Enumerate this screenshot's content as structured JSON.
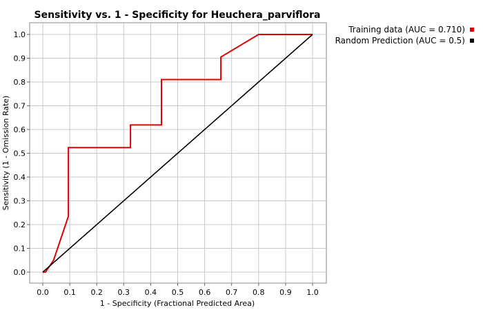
{
  "chart_data": {
    "type": "line",
    "title": "Sensitivity vs. 1 - Specificity for Heuchera_parviflora",
    "xlabel": "1 - Specificity  (Fractional Predicted Area)",
    "ylabel": "Sensitivity  (1 - Omission Rate)",
    "xlim": [
      0,
      1
    ],
    "ylim": [
      0,
      1
    ],
    "xticks": [
      "0.0",
      "0.1",
      "0.2",
      "0.3",
      "0.4",
      "0.5",
      "0.6",
      "0.7",
      "0.8",
      "0.9",
      "1.0"
    ],
    "yticks": [
      "0.0",
      "0.1",
      "0.2",
      "0.3",
      "0.4",
      "0.5",
      "0.6",
      "0.7",
      "0.8",
      "0.9",
      "1.0"
    ],
    "grid": true,
    "legend_position": "top-right outside",
    "series": [
      {
        "name": "Training data (AUC = 0.710)",
        "color": "#e00000",
        "x": [
          0.0,
          0.01,
          0.04,
          0.095,
          0.095,
          0.325,
          0.325,
          0.44,
          0.44,
          0.66,
          0.66,
          0.8,
          1.0
        ],
        "y": [
          0.0,
          0.0,
          0.05,
          0.235,
          0.524,
          0.524,
          0.619,
          0.619,
          0.81,
          0.81,
          0.905,
          1.0,
          1.0
        ]
      },
      {
        "name": "Random Prediction (AUC = 0.5)",
        "color": "#000000",
        "x": [
          0.0,
          1.0
        ],
        "y": [
          0.0,
          1.0
        ]
      }
    ]
  }
}
